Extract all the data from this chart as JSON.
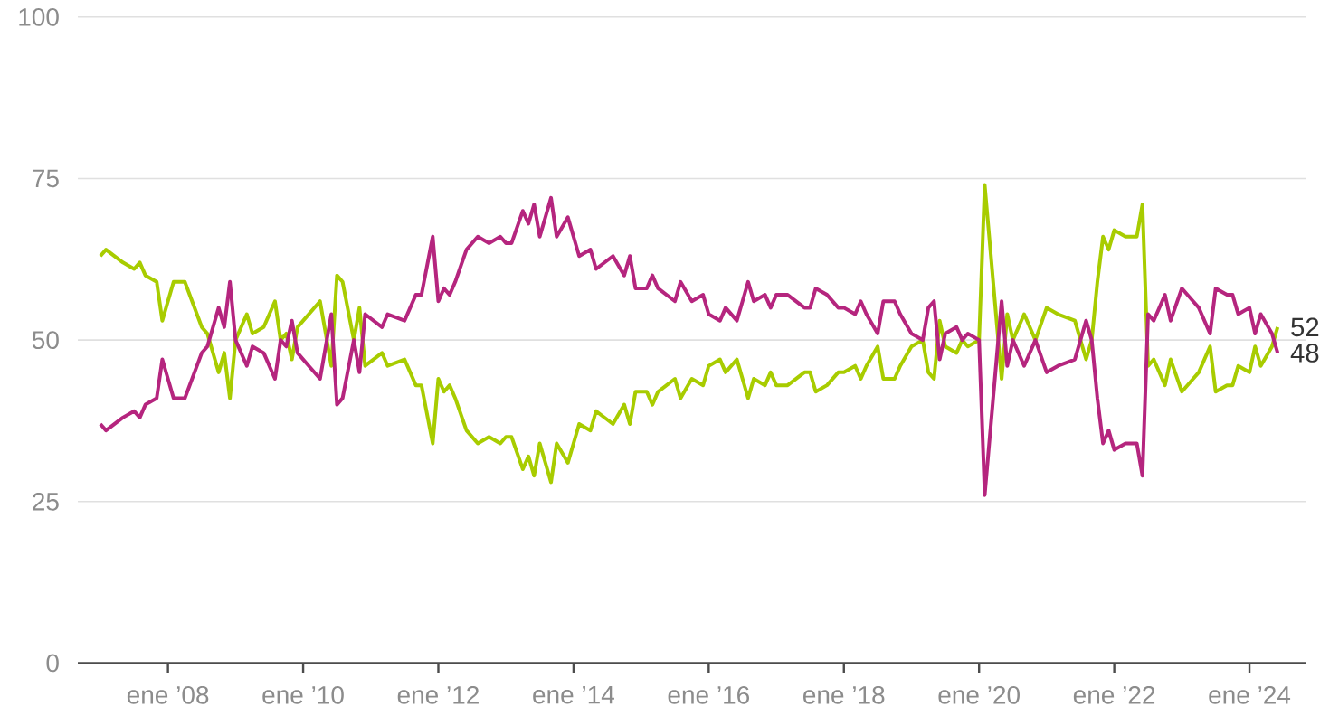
{
  "chart_data": {
    "type": "line",
    "x": [
      "2007-01",
      "2007-02",
      "2007-05",
      "2007-07",
      "2007-08",
      "2007-09",
      "2007-11",
      "2007-12",
      "2008-02",
      "2008-04",
      "2008-07",
      "2008-08",
      "2008-10",
      "2008-11",
      "2008-12",
      "2009-01",
      "2009-03",
      "2009-04",
      "2009-06",
      "2009-08",
      "2009-09",
      "2009-10",
      "2009-11",
      "2009-12",
      "2010-02",
      "2010-04",
      "2010-06",
      "2010-07",
      "2010-08",
      "2010-10",
      "2010-11",
      "2010-12",
      "2011-03",
      "2011-04",
      "2011-07",
      "2011-09",
      "2011-10",
      "2011-12",
      "2012-01",
      "2012-02",
      "2012-03",
      "2012-04",
      "2012-06",
      "2012-08",
      "2012-10",
      "2012-12",
      "2013-01",
      "2013-02",
      "2013-04",
      "2013-05",
      "2013-06",
      "2013-07",
      "2013-09",
      "2013-10",
      "2013-12",
      "2014-02",
      "2014-04",
      "2014-05",
      "2014-08",
      "2014-10",
      "2014-11",
      "2014-12",
      "2015-02",
      "2015-03",
      "2015-04",
      "2015-07",
      "2015-08",
      "2015-10",
      "2015-12",
      "2016-01",
      "2016-03",
      "2016-04",
      "2016-06",
      "2016-07",
      "2016-08",
      "2016-09",
      "2016-11",
      "2016-12",
      "2017-01",
      "2017-03",
      "2017-06",
      "2017-07",
      "2017-08",
      "2017-10",
      "2017-12",
      "2018-01",
      "2018-03",
      "2018-04",
      "2018-05",
      "2018-07",
      "2018-08",
      "2018-10",
      "2018-11",
      "2019-01",
      "2019-03",
      "2019-04",
      "2019-05",
      "2019-06",
      "2019-07",
      "2019-09",
      "2019-10",
      "2019-11",
      "2020-01",
      "2020-02",
      "2020-05",
      "2020-06",
      "2020-07",
      "2020-09",
      "2020-11",
      "2021-01",
      "2021-03",
      "2021-06",
      "2021-07",
      "2021-08",
      "2021-09",
      "2021-10",
      "2021-11",
      "2021-12",
      "2022-01",
      "2022-03",
      "2022-05",
      "2022-06",
      "2022-07",
      "2022-08",
      "2022-10",
      "2022-11",
      "2023-01",
      "2023-03",
      "2023-04",
      "2023-06",
      "2023-07",
      "2023-09",
      "2023-10",
      "2023-11",
      "2024-01",
      "2024-02",
      "2024-03",
      "2024-05",
      "2024-06"
    ],
    "series": [
      {
        "color": "#a8cc00",
        "values": [
          63,
          64,
          62,
          61,
          62,
          60,
          59,
          53,
          59,
          59,
          52,
          51,
          45,
          48,
          41,
          50,
          54,
          51,
          52,
          56,
          50,
          51,
          47,
          52,
          54,
          56,
          46,
          60,
          59,
          50,
          55,
          46,
          48,
          46,
          47,
          43,
          43,
          34,
          44,
          42,
          43,
          41,
          36,
          34,
          35,
          34,
          35,
          35,
          30,
          32,
          29,
          34,
          28,
          34,
          31,
          37,
          36,
          39,
          37,
          40,
          37,
          42,
          42,
          40,
          42,
          44,
          41,
          44,
          43,
          46,
          47,
          45,
          47,
          44,
          41,
          44,
          43,
          45,
          43,
          43,
          45,
          45,
          42,
          43,
          45,
          45,
          46,
          44,
          46,
          49,
          44,
          44,
          46,
          49,
          50,
          45,
          44,
          53,
          49,
          48,
          50,
          49,
          50,
          74,
          44,
          54,
          50,
          54,
          50,
          55,
          54,
          53,
          50,
          47,
          50,
          59,
          66,
          64,
          67,
          66,
          66,
          71,
          46,
          47,
          43,
          47,
          42,
          44,
          45,
          49,
          42,
          43,
          43,
          46,
          45,
          49,
          46,
          49,
          52
        ]
      },
      {
        "color": "#b5257e",
        "values": [
          37,
          36,
          38,
          39,
          38,
          40,
          41,
          47,
          41,
          41,
          48,
          49,
          55,
          52,
          59,
          50,
          46,
          49,
          48,
          44,
          50,
          49,
          53,
          48,
          46,
          44,
          54,
          40,
          41,
          50,
          45,
          54,
          52,
          54,
          53,
          57,
          57,
          66,
          56,
          58,
          57,
          59,
          64,
          66,
          65,
          66,
          65,
          65,
          70,
          68,
          71,
          66,
          72,
          66,
          69,
          63,
          64,
          61,
          63,
          60,
          63,
          58,
          58,
          60,
          58,
          56,
          59,
          56,
          57,
          54,
          53,
          55,
          53,
          56,
          59,
          56,
          57,
          55,
          57,
          57,
          55,
          55,
          58,
          57,
          55,
          55,
          54,
          56,
          54,
          51,
          56,
          56,
          54,
          51,
          50,
          55,
          56,
          47,
          51,
          52,
          50,
          51,
          50,
          26,
          56,
          46,
          50,
          46,
          50,
          45,
          46,
          47,
          50,
          53,
          50,
          41,
          34,
          36,
          33,
          34,
          34,
          29,
          54,
          53,
          57,
          53,
          58,
          56,
          55,
          51,
          58,
          57,
          57,
          54,
          55,
          51,
          54,
          51,
          48
        ]
      }
    ],
    "xlim": [
      "2006-09",
      "2024-11"
    ],
    "xticks": [
      {
        "value": "2008-01",
        "label": "ene ’08"
      },
      {
        "value": "2010-01",
        "label": "ene ’10"
      },
      {
        "value": "2012-01",
        "label": "ene ’12"
      },
      {
        "value": "2014-01",
        "label": "ene ’14"
      },
      {
        "value": "2016-01",
        "label": "ene ’16"
      },
      {
        "value": "2018-01",
        "label": "ene ’18"
      },
      {
        "value": "2020-01",
        "label": "ene ’20"
      },
      {
        "value": "2022-01",
        "label": "ene ’22"
      },
      {
        "value": "2024-01",
        "label": "ene ’24"
      }
    ],
    "ylim": [
      0,
      100
    ],
    "yticks": [
      0,
      25,
      50,
      75,
      100
    ],
    "grid": "y",
    "annotations": [
      {
        "text": "52",
        "x": "2024-06",
        "y": 52
      },
      {
        "text": "48",
        "x": "2024-06",
        "y": 48
      }
    ]
  }
}
